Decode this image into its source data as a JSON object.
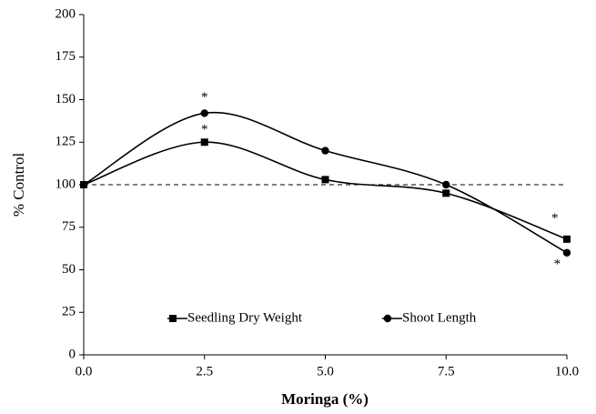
{
  "chart_data": {
    "type": "line",
    "x_label": "Moringa (%)",
    "y_label": "% Control",
    "x": [
      0,
      2.5,
      5,
      7.5,
      10
    ],
    "series": [
      {
        "name": "Seedling Dry Weight",
        "color": "#000000",
        "marker": "square",
        "values": [
          100,
          125,
          103,
          95,
          68
        ]
      },
      {
        "name": "Shoot Length",
        "color": "#000000",
        "marker": "circle",
        "values": [
          100,
          142,
          120,
          100,
          60
        ]
      }
    ],
    "xlim": [
      0,
      10
    ],
    "ylim": [
      0,
      200
    ],
    "xticks": [
      {
        "value": 0,
        "label": "0.0"
      },
      {
        "value": 2.5,
        "label": "2.5"
      },
      {
        "value": 5,
        "label": "5.0"
      },
      {
        "value": 7.5,
        "label": "7.5"
      },
      {
        "value": 10,
        "label": "10.0"
      }
    ],
    "yticks": [
      0,
      25,
      50,
      75,
      100,
      125,
      150,
      175,
      200
    ],
    "reference_line": 100,
    "smooth": true,
    "legend": "lower center",
    "annotations": [
      {
        "text": "*",
        "x": 2.5,
        "y": 151
      },
      {
        "text": "*",
        "x": 2.5,
        "y": 132
      },
      {
        "text": "*",
        "x": 9.75,
        "y": 80
      },
      {
        "text": "*",
        "x": 9.8,
        "y": 53
      }
    ]
  }
}
